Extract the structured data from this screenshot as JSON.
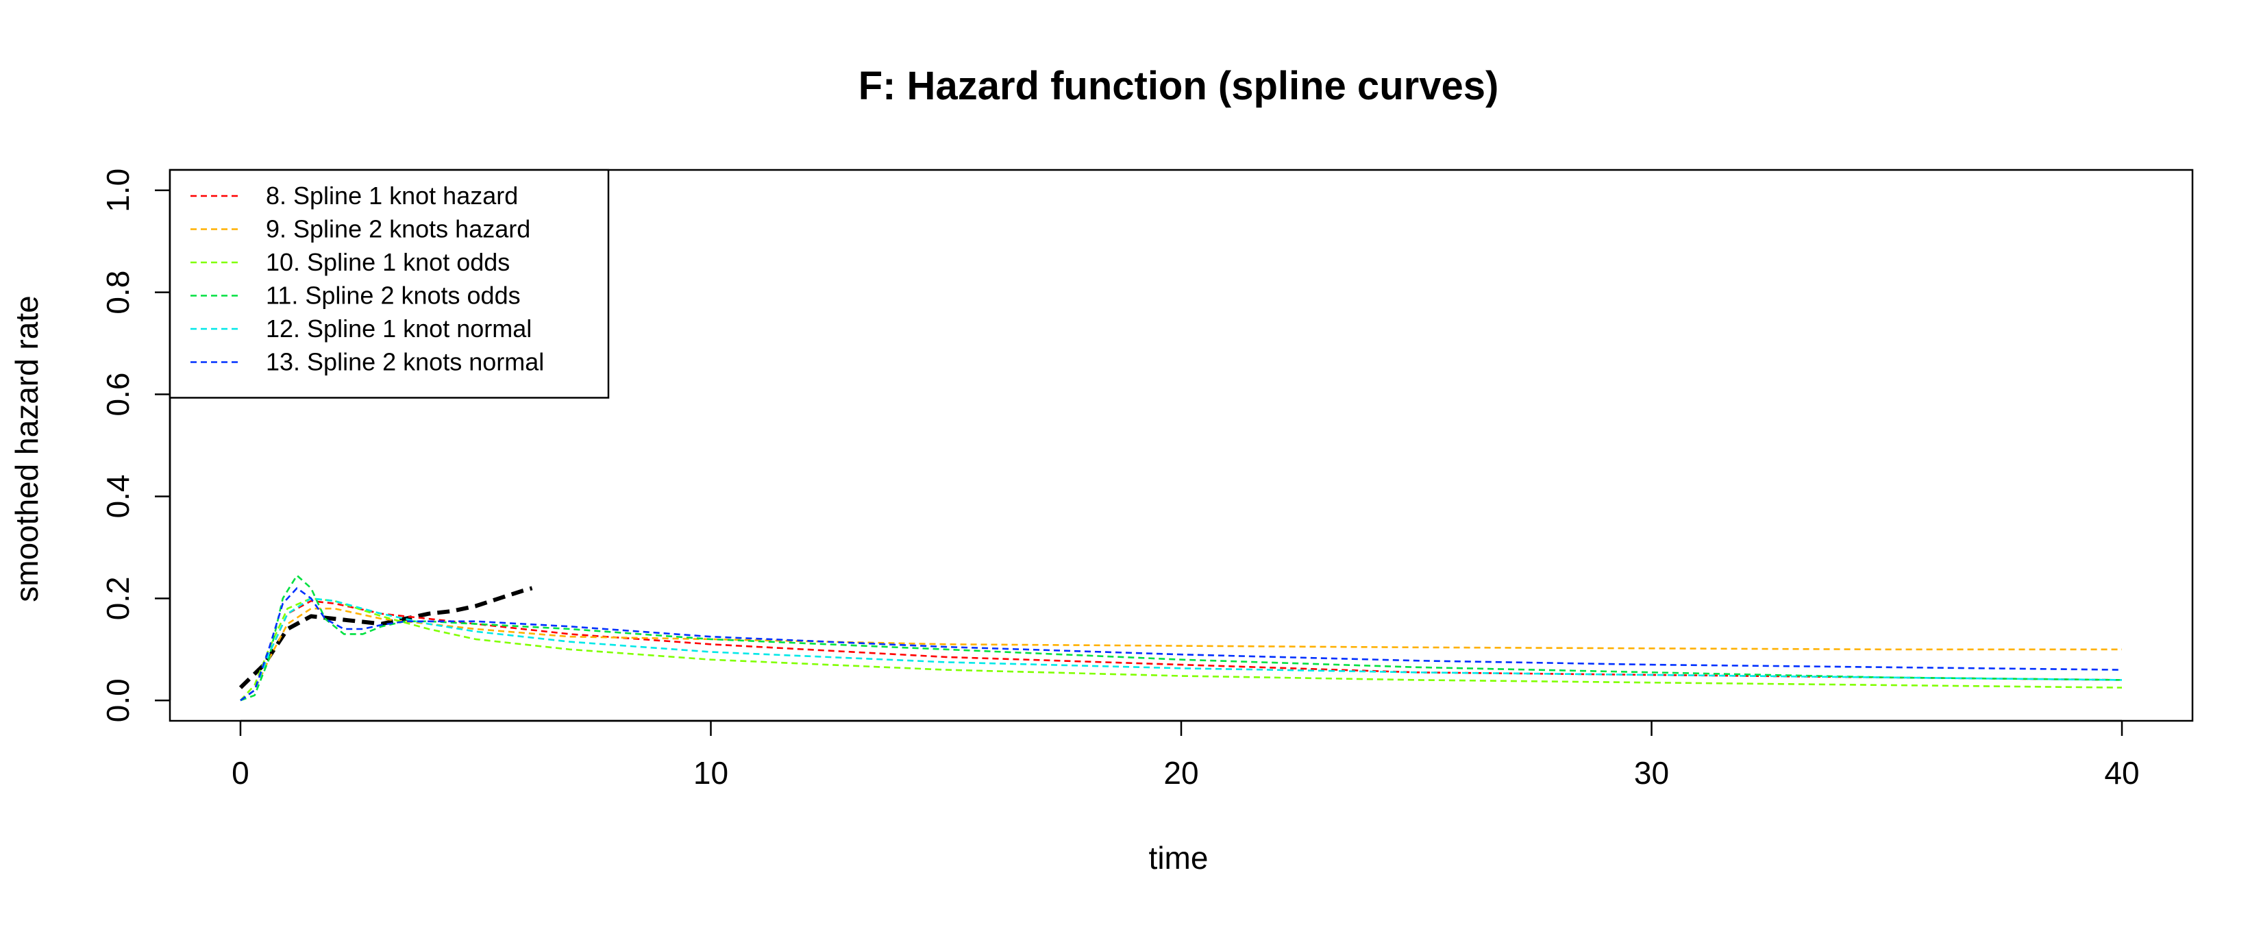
{
  "chart_data": {
    "type": "line",
    "title": "F: Hazard function (spline curves)",
    "xlabel": "time",
    "ylabel": "smoothed hazard rate",
    "xlim": [
      -1.5,
      41.5
    ],
    "ylim": [
      -0.04,
      1.04
    ],
    "xticks": [
      0,
      10,
      20,
      30,
      40
    ],
    "yticks": [
      0.0,
      0.2,
      0.4,
      0.6,
      0.8,
      1.0
    ],
    "xtick_labels": [
      "0",
      "10",
      "20",
      "30",
      "40"
    ],
    "ytick_labels": [
      "0.0",
      "0.2",
      "0.4",
      "0.6",
      "0.8",
      "1.0"
    ],
    "legend_position": "top-left",
    "grid": false,
    "legend": [
      {
        "label": "8. Spline 1 knot hazard",
        "color": "#ff0000"
      },
      {
        "label": "9. Spline 2 knots hazard",
        "color": "#ffb000"
      },
      {
        "label": "10. Spline 1 knot odds",
        "color": "#80ff00"
      },
      {
        "label": "11. Spline 2 knots odds",
        "color": "#00e040"
      },
      {
        "label": "12. Spline 1 knot normal",
        "color": "#00e8e8"
      },
      {
        "label": "13. Spline 2 knots normal",
        "color": "#0030ff"
      }
    ],
    "series": [
      {
        "color": "#000000",
        "style": "thick-dashed",
        "x": [
          0,
          0.5,
          1,
          1.5,
          2,
          2.5,
          3,
          3.5,
          4,
          4.5,
          5,
          5.5,
          6,
          6.2
        ],
        "y": [
          0.025,
          0.07,
          0.14,
          0.165,
          0.16,
          0.155,
          0.15,
          0.16,
          0.17,
          0.175,
          0.185,
          0.2,
          0.215,
          0.22
        ]
      },
      {
        "color": "#ff0000",
        "x": [
          0,
          0.3,
          0.6,
          1,
          1.5,
          2,
          3,
          4,
          5,
          7,
          10,
          15,
          20,
          25,
          30,
          35,
          40
        ],
        "y": [
          0.0,
          0.02,
          0.09,
          0.17,
          0.195,
          0.19,
          0.17,
          0.16,
          0.15,
          0.13,
          0.11,
          0.085,
          0.07,
          0.055,
          0.05,
          0.045,
          0.04
        ]
      },
      {
        "color": "#ffb000",
        "x": [
          0,
          0.3,
          0.6,
          1,
          1.5,
          2,
          3,
          4,
          5,
          7,
          10,
          15,
          20,
          25,
          30,
          35,
          40
        ],
        "y": [
          0.0,
          0.02,
          0.08,
          0.15,
          0.18,
          0.18,
          0.16,
          0.15,
          0.14,
          0.125,
          0.12,
          0.11,
          0.107,
          0.104,
          0.102,
          0.1,
          0.1
        ]
      },
      {
        "color": "#80ff00",
        "x": [
          0,
          0.3,
          0.6,
          1,
          1.5,
          2,
          3,
          4,
          5,
          7,
          10,
          15,
          20,
          25,
          30,
          35,
          40
        ],
        "y": [
          0.0,
          0.03,
          0.1,
          0.18,
          0.2,
          0.195,
          0.165,
          0.14,
          0.12,
          0.1,
          0.08,
          0.06,
          0.048,
          0.04,
          0.035,
          0.03,
          0.025
        ]
      },
      {
        "color": "#00e040",
        "x": [
          0,
          0.3,
          0.6,
          0.9,
          1.2,
          1.5,
          1.8,
          2.2,
          2.6,
          3,
          3.5,
          4,
          5,
          7,
          10,
          15,
          20,
          25,
          30,
          35,
          40
        ],
        "y": [
          0.0,
          0.01,
          0.08,
          0.2,
          0.245,
          0.22,
          0.16,
          0.13,
          0.13,
          0.145,
          0.155,
          0.155,
          0.15,
          0.14,
          0.12,
          0.1,
          0.08,
          0.065,
          0.055,
          0.045,
          0.04
        ]
      },
      {
        "color": "#00e8e8",
        "x": [
          0,
          0.3,
          0.6,
          1,
          1.5,
          2,
          3,
          4,
          5,
          7,
          10,
          15,
          20,
          25,
          30,
          35,
          40
        ],
        "y": [
          0.0,
          0.02,
          0.09,
          0.17,
          0.2,
          0.195,
          0.17,
          0.15,
          0.135,
          0.115,
          0.095,
          0.075,
          0.063,
          0.055,
          0.05,
          0.045,
          0.04
        ]
      },
      {
        "color": "#0030ff",
        "x": [
          0,
          0.3,
          0.6,
          0.9,
          1.2,
          1.5,
          1.8,
          2.2,
          2.6,
          3,
          3.5,
          4,
          5,
          7,
          10,
          15,
          20,
          25,
          30,
          35,
          40
        ],
        "y": [
          0.0,
          0.02,
          0.1,
          0.19,
          0.22,
          0.2,
          0.16,
          0.14,
          0.14,
          0.148,
          0.155,
          0.155,
          0.155,
          0.145,
          0.125,
          0.105,
          0.09,
          0.078,
          0.07,
          0.065,
          0.06
        ]
      }
    ]
  }
}
